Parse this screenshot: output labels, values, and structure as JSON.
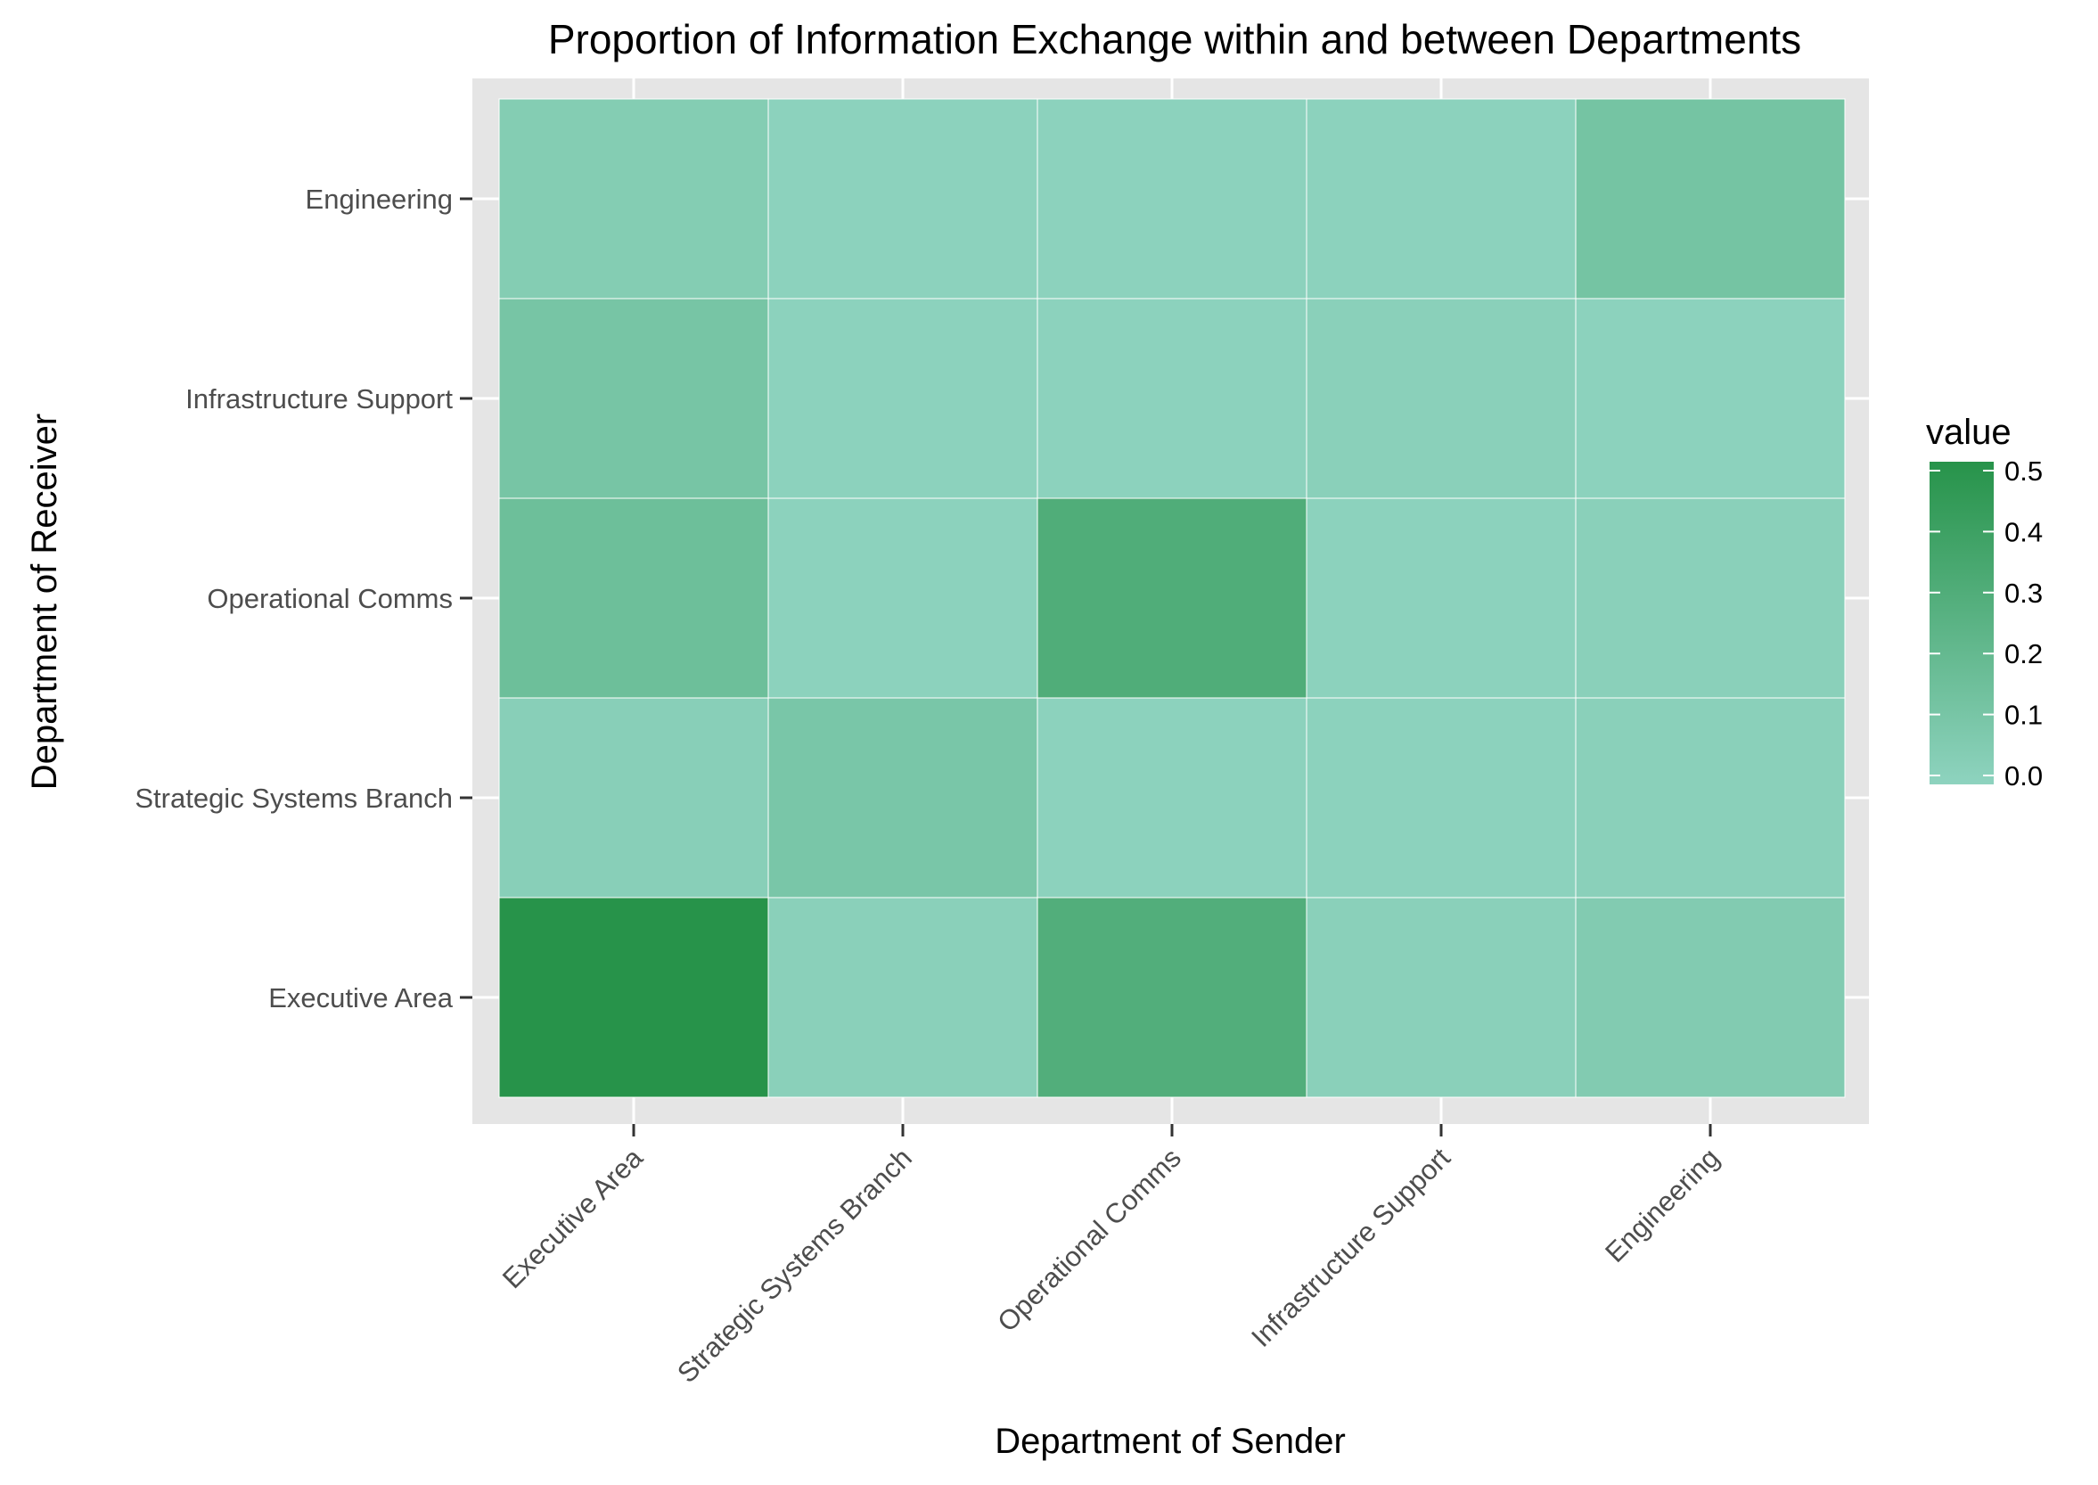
{
  "chart_data": {
    "type": "heatmap",
    "title": "Proportion of  Information Exchange within and between Departments",
    "xlabel": "Department of Sender",
    "ylabel": "Department of Receiver",
    "x_categories": [
      "Executive Area",
      "Strategic Systems Branch",
      "Operational Comms",
      "Infrastructure Support",
      "Engineering"
    ],
    "y_categories": [
      "Executive Area",
      "Strategic Systems Branch",
      "Operational Comms",
      "Infrastructure Support",
      "Engineering"
    ],
    "values": [
      [
        0.5,
        0.02,
        0.29,
        0.02,
        0.06
      ],
      [
        0.03,
        0.1,
        0.01,
        0.01,
        0.02
      ],
      [
        0.16,
        0.01,
        0.3,
        0.01,
        0.02
      ],
      [
        0.11,
        0.01,
        0.01,
        0.02,
        0.01
      ],
      [
        0.05,
        0.01,
        0.01,
        0.01,
        0.12
      ]
    ],
    "legend": {
      "title": "value",
      "ticks": [
        "0.0",
        "0.1",
        "0.2",
        "0.3",
        "0.4",
        "0.5"
      ],
      "min": 0.0,
      "max": 0.5,
      "placement": "right"
    },
    "colors": {
      "low": "#8ed3bf",
      "high": "#27934a",
      "panel_background": "#e5e5e5",
      "grid": "#ffffff"
    },
    "grid": true
  }
}
